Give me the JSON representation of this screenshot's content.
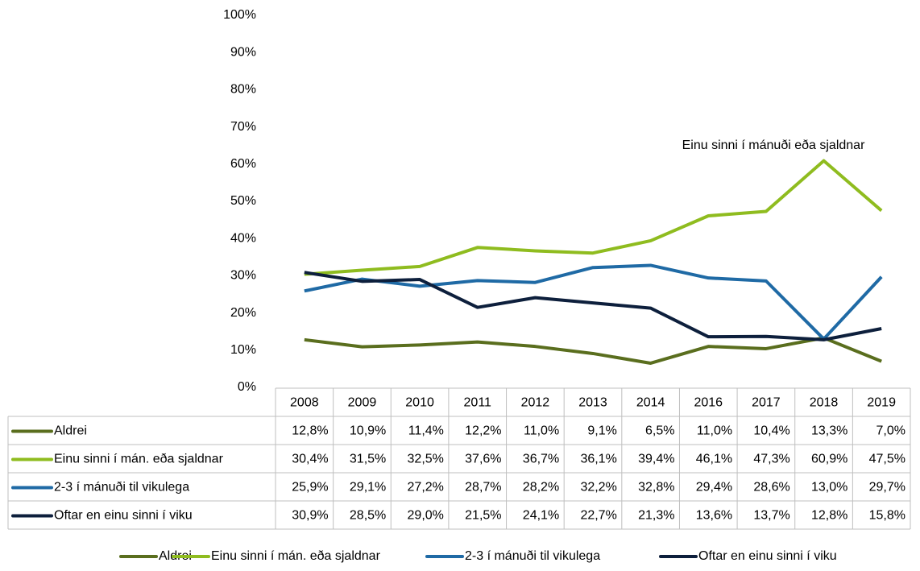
{
  "chart_data": {
    "type": "line",
    "categories": [
      "2008",
      "2009",
      "2010",
      "2011",
      "2012",
      "2013",
      "2014",
      "2016",
      "2017",
      "2018",
      "2019"
    ],
    "series": [
      {
        "name": "Aldrei",
        "color": "#5a6e1e",
        "values": [
          12.8,
          10.9,
          11.4,
          12.2,
          11.0,
          9.1,
          6.5,
          11.0,
          10.4,
          13.3,
          7.0
        ],
        "value_labels": [
          "12,8%",
          "10,9%",
          "11,4%",
          "12,2%",
          "11,0%",
          "9,1%",
          "6,5%",
          "11,0%",
          "10,4%",
          "13,3%",
          "7,0%"
        ]
      },
      {
        "name": "Einu sinni í mán. eða sjaldnar",
        "color": "#8fbc1f",
        "values": [
          30.4,
          31.5,
          32.5,
          37.6,
          36.7,
          36.1,
          39.4,
          46.1,
          47.3,
          60.9,
          47.5
        ],
        "value_labels": [
          "30,4%",
          "31,5%",
          "32,5%",
          "37,6%",
          "36,7%",
          "36,1%",
          "39,4%",
          "46,1%",
          "47,3%",
          "60,9%",
          "47,5%"
        ]
      },
      {
        "name": "2-3 í mánuði til vikulega",
        "color": "#1f6aa5",
        "values": [
          25.9,
          29.1,
          27.2,
          28.7,
          28.2,
          32.2,
          32.8,
          29.4,
          28.6,
          13.0,
          29.7
        ],
        "value_labels": [
          "25,9%",
          "29,1%",
          "27,2%",
          "28,7%",
          "28,2%",
          "32,2%",
          "32,8%",
          "29,4%",
          "28,6%",
          "13,0%",
          "29,7%"
        ]
      },
      {
        "name": "Oftar en einu sinni í viku",
        "color": "#0d1f3c",
        "values": [
          30.9,
          28.5,
          29.0,
          21.5,
          24.1,
          22.7,
          21.3,
          13.6,
          13.7,
          12.8,
          15.8
        ],
        "value_labels": [
          "30,9%",
          "28,5%",
          "29,0%",
          "21,5%",
          "24,1%",
          "22,7%",
          "21,3%",
          "13,6%",
          "13,7%",
          "12,8%",
          "15,8%"
        ]
      }
    ],
    "annotation": "Einu sinni í mánuði eða sjaldnar",
    "ylim": [
      0,
      100
    ],
    "yticks": [
      {
        "value": 0,
        "label": "0%"
      },
      {
        "value": 10,
        "label": "10%"
      },
      {
        "value": 20,
        "label": "20%"
      },
      {
        "value": 30,
        "label": "30%"
      },
      {
        "value": 40,
        "label": "40%"
      },
      {
        "value": 50,
        "label": "50%"
      },
      {
        "value": 60,
        "label": "60%"
      },
      {
        "value": 70,
        "label": "70%"
      },
      {
        "value": 80,
        "label": "80%"
      },
      {
        "value": 90,
        "label": "90%"
      },
      {
        "value": 100,
        "label": "100%"
      }
    ],
    "grid": false
  }
}
